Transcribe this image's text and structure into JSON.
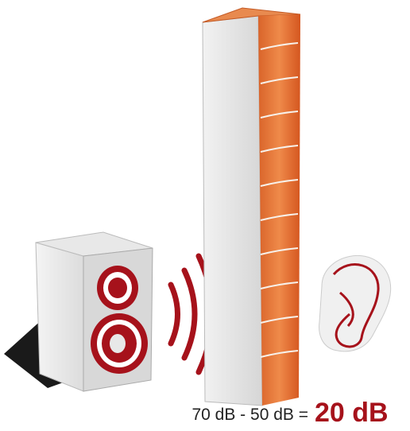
{
  "equation": {
    "left": "70 dB - 50 dB =",
    "result": "20 dB"
  }
}
